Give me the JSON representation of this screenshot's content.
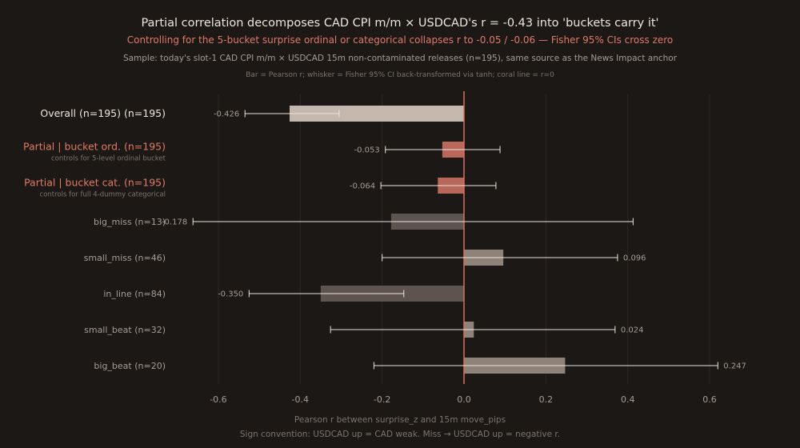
{
  "header": {
    "title": "Partial correlation decomposes CAD CPI m/m × USDCAD's r = -0.43 into 'buckets carry it'",
    "subtitle": "Controlling for the 5-bucket surprise ordinal or categorical collapses r to -0.05 / -0.06 — Fisher 95% CIs cross zero",
    "sample_note": "Sample: today's slot-1 CAD CPI m/m × USDCAD 15m non-contaminated releases (n=195), same source as the News Impact anchor",
    "legend_note": "Bar = Pearson r; whisker = Fisher 95% CI back-transformed via tanh; coral line = r=0"
  },
  "footer": {
    "xlabel": "Pearson r between surprise_z and 15m move_pips",
    "sign_note": "Sign convention: USDCAD up = CAD weak. Miss → USDCAD up = negative r."
  },
  "colors": {
    "background": "#1c1816",
    "title": "#ede6de",
    "accent": "#e07a66",
    "muted": "#a59d96",
    "dim": "#7c746d",
    "grid": "#2c2724",
    "bar_overall": "#c4b8ae",
    "bar_partial": "#b86758",
    "bar_bucket_pos": "#8f8279",
    "bar_bucket_neg": "#5e544f",
    "whisker": "#ebe5df",
    "zero_line": "#d9705e"
  },
  "chart_data": {
    "type": "bar",
    "orientation": "horizontal",
    "xlim": [
      -0.68,
      0.68
    ],
    "xticks": [
      -0.6,
      -0.4,
      -0.2,
      0.0,
      0.2,
      0.4,
      0.6
    ],
    "xtick_labels": [
      "-0.6",
      "-0.4",
      "-0.2",
      "0.0",
      "0.2",
      "0.4",
      "0.6"
    ],
    "xlabel": "Pearson r between surprise_z and 15m move_pips",
    "grid": true,
    "reference_line": 0,
    "rows": [
      {
        "label": "Overall (n=195) (n=195)",
        "sublabel": "",
        "value": -0.426,
        "value_label": "-0.426",
        "ci": [
          -0.535,
          -0.305
        ],
        "kind": "overall"
      },
      {
        "label": "Partial | bucket ord. (n=195)",
        "sublabel": "controls for 5-level ordinal bucket",
        "value": -0.053,
        "value_label": "-0.053",
        "ci": [
          -0.192,
          0.088
        ],
        "kind": "partial"
      },
      {
        "label": "Partial | bucket cat. (n=195)",
        "sublabel": "controls for full 4-dummy categorical",
        "value": -0.064,
        "value_label": "-0.064",
        "ci": [
          -0.203,
          0.078
        ],
        "kind": "partial"
      },
      {
        "label": "big_miss (n=13)",
        "sublabel": "",
        "value": -0.178,
        "value_label": "-0.178",
        "ci": [
          -0.662,
          0.413
        ],
        "kind": "bucket"
      },
      {
        "label": "small_miss (n=46)",
        "sublabel": "",
        "value": 0.096,
        "value_label": "0.096",
        "ci": [
          -0.2,
          0.375
        ],
        "kind": "bucket"
      },
      {
        "label": "in_line (n=84)",
        "sublabel": "",
        "value": -0.35,
        "value_label": "-0.350",
        "ci": [
          -0.525,
          -0.147
        ],
        "kind": "bucket"
      },
      {
        "label": "small_beat (n=32)",
        "sublabel": "",
        "value": 0.024,
        "value_label": "0.024",
        "ci": [
          -0.326,
          0.369
        ],
        "kind": "bucket"
      },
      {
        "label": "big_beat (n=20)",
        "sublabel": "",
        "value": 0.247,
        "value_label": "0.247",
        "ci": [
          -0.22,
          0.62
        ],
        "kind": "bucket"
      }
    ]
  }
}
